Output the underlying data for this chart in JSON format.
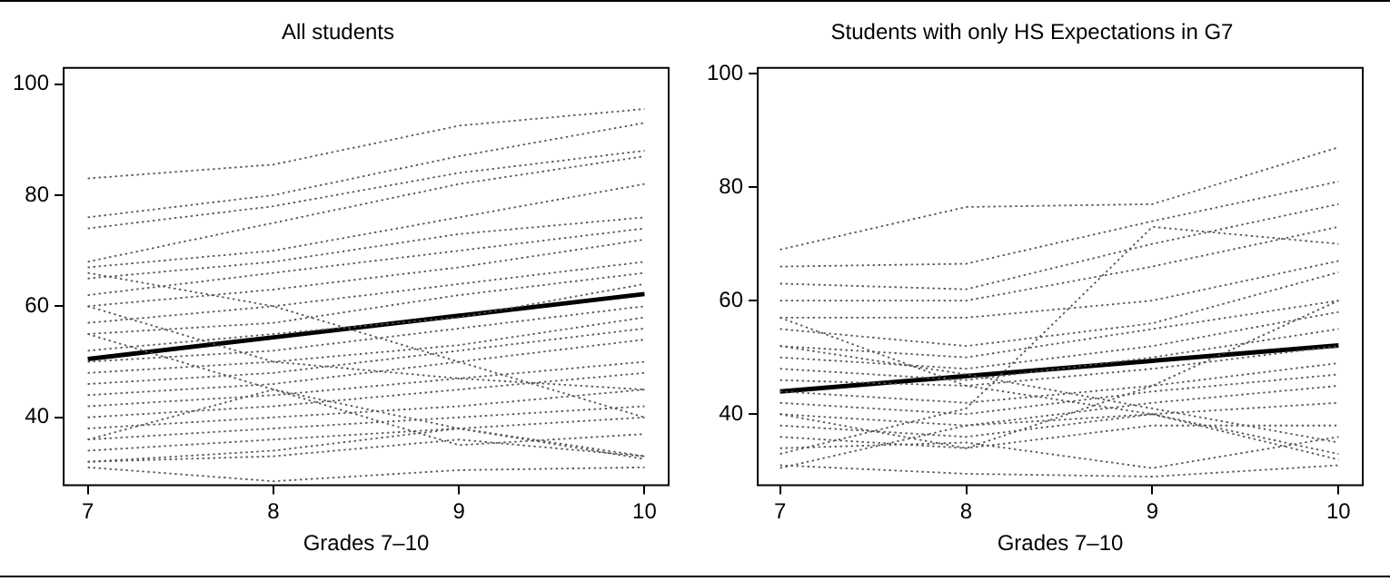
{
  "chart_data": [
    {
      "type": "line",
      "title": "All students",
      "xlabel": "Grades 7–10",
      "x": [
        7,
        8,
        9,
        10
      ],
      "xlim": [
        6.87,
        10.13
      ],
      "xticks": [
        7,
        8,
        9,
        10
      ],
      "ylim": [
        27.8,
        102.9
      ],
      "yticks": [
        40,
        60,
        80,
        100
      ],
      "grid": false,
      "legend": false,
      "marker": "none",
      "series": [
        {
          "color": "#555555",
          "line_style": "dotted",
          "values": [
            83,
            85.5,
            92.5,
            95.5
          ]
        },
        {
          "color": "#555555",
          "line_style": "dotted",
          "values": [
            76,
            80,
            87,
            93
          ]
        },
        {
          "color": "#555555",
          "line_style": "dotted",
          "values": [
            74,
            78,
            84,
            88
          ]
        },
        {
          "color": "#555555",
          "line_style": "dotted",
          "values": [
            68,
            75,
            82,
            87
          ]
        },
        {
          "color": "#555555",
          "line_style": "dotted",
          "values": [
            67,
            70,
            76,
            82
          ]
        },
        {
          "color": "#555555",
          "line_style": "dotted",
          "values": [
            65,
            68,
            73,
            76
          ]
        },
        {
          "color": "#555555",
          "line_style": "dotted",
          "values": [
            62,
            66,
            70,
            74
          ]
        },
        {
          "color": "#555555",
          "line_style": "dotted",
          "values": [
            60,
            63,
            67,
            72
          ]
        },
        {
          "color": "#555555",
          "line_style": "dotted",
          "values": [
            57,
            60,
            64,
            68
          ]
        },
        {
          "color": "#555555",
          "line_style": "dotted",
          "values": [
            55,
            57,
            62,
            66
          ]
        },
        {
          "color": "#555555",
          "line_style": "dotted",
          "values": [
            52,
            55,
            58,
            64
          ]
        },
        {
          "color": "#555555",
          "line_style": "dotted",
          "values": [
            50,
            52,
            56,
            60
          ]
        },
        {
          "color": "#555555",
          "line_style": "dotted",
          "values": [
            48,
            50,
            53,
            58
          ]
        },
        {
          "color": "#555555",
          "line_style": "dotted",
          "values": [
            46,
            48,
            52,
            56
          ]
        },
        {
          "color": "#555555",
          "line_style": "dotted",
          "values": [
            44,
            46,
            50,
            54
          ]
        },
        {
          "color": "#555555",
          "line_style": "dotted",
          "values": [
            42,
            44,
            47,
            50
          ]
        },
        {
          "color": "#555555",
          "line_style": "dotted",
          "values": [
            40,
            42,
            45,
            48
          ]
        },
        {
          "color": "#555555",
          "line_style": "dotted",
          "values": [
            38,
            40,
            42,
            45
          ]
        },
        {
          "color": "#555555",
          "line_style": "dotted",
          "values": [
            36,
            38,
            40,
            42
          ]
        },
        {
          "color": "#555555",
          "line_style": "dotted",
          "values": [
            34,
            36,
            38,
            40
          ]
        },
        {
          "color": "#555555",
          "line_style": "dotted",
          "values": [
            32,
            34,
            38,
            32.5
          ]
        },
        {
          "color": "#555555",
          "line_style": "dotted",
          "values": [
            31,
            28.5,
            30.5,
            31
          ]
        },
        {
          "color": "#555555",
          "line_style": "dotted",
          "values": [
            32,
            33,
            36,
            33
          ]
        },
        {
          "color": "#555555",
          "line_style": "dotted",
          "values": [
            36,
            45,
            35,
            37
          ]
        },
        {
          "color": "#555555",
          "line_style": "dotted",
          "values": [
            66,
            60,
            50,
            40
          ]
        },
        {
          "color": "#555555",
          "line_style": "dotted",
          "values": [
            55,
            45,
            38,
            33
          ]
        },
        {
          "color": "#555555",
          "line_style": "dotted",
          "values": [
            60,
            50,
            47,
            45
          ]
        },
        {
          "color": "#000000",
          "line_style": "solid",
          "values": [
            50.5,
            54.4,
            58.3,
            62.2
          ]
        }
      ]
    },
    {
      "type": "line",
      "title": "Students with only HS Expectations in G7",
      "xlabel": "Grades 7–10",
      "x": [
        7,
        8,
        9,
        10
      ],
      "xlim": [
        6.88,
        10.13
      ],
      "xticks": [
        7,
        8,
        9,
        10
      ],
      "ylim": [
        27.5,
        101
      ],
      "yticks": [
        40,
        60,
        80,
        100
      ],
      "grid": false,
      "legend": false,
      "marker": "none",
      "series": [
        {
          "color": "#555555",
          "line_style": "dotted",
          "values": [
            69,
            76.5,
            77,
            87
          ]
        },
        {
          "color": "#555555",
          "line_style": "dotted",
          "values": [
            66,
            66.5,
            74,
            81
          ]
        },
        {
          "color": "#555555",
          "line_style": "dotted",
          "values": [
            63,
            62,
            70,
            77
          ]
        },
        {
          "color": "#555555",
          "line_style": "dotted",
          "values": [
            60,
            60,
            66,
            73
          ]
        },
        {
          "color": "#555555",
          "line_style": "dotted",
          "values": [
            57,
            57,
            60,
            67
          ]
        },
        {
          "color": "#555555",
          "line_style": "dotted",
          "values": [
            55,
            52,
            56,
            65
          ]
        },
        {
          "color": "#555555",
          "line_style": "dotted",
          "values": [
            52,
            50,
            55,
            60
          ]
        },
        {
          "color": "#555555",
          "line_style": "dotted",
          "values": [
            50,
            48,
            52,
            58
          ]
        },
        {
          "color": "#555555",
          "line_style": "dotted",
          "values": [
            48,
            46,
            50,
            55
          ]
        },
        {
          "color": "#555555",
          "line_style": "dotted",
          "values": [
            46,
            45,
            48,
            52
          ]
        },
        {
          "color": "#555555",
          "line_style": "dotted",
          "values": [
            44,
            42,
            45,
            49
          ]
        },
        {
          "color": "#555555",
          "line_style": "dotted",
          "values": [
            42,
            40,
            44,
            47
          ]
        },
        {
          "color": "#555555",
          "line_style": "dotted",
          "values": [
            40,
            38,
            42,
            45
          ]
        },
        {
          "color": "#555555",
          "line_style": "dotted",
          "values": [
            38,
            36,
            40,
            42
          ]
        },
        {
          "color": "#555555",
          "line_style": "dotted",
          "values": [
            36,
            34,
            38,
            38
          ]
        },
        {
          "color": "#555555",
          "line_style": "dotted",
          "values": [
            34,
            35,
            30.5,
            36
          ]
        },
        {
          "color": "#555555",
          "line_style": "dotted",
          "values": [
            31,
            29.5,
            29,
            31
          ]
        },
        {
          "color": "#555555",
          "line_style": "dotted",
          "values": [
            30.5,
            38,
            40,
            33
          ]
        },
        {
          "color": "#555555",
          "line_style": "dotted",
          "values": [
            57,
            45,
            40,
            32
          ]
        },
        {
          "color": "#555555",
          "line_style": "dotted",
          "values": [
            52,
            47,
            41,
            35
          ]
        },
        {
          "color": "#555555",
          "line_style": "dotted",
          "values": [
            33,
            41,
            73,
            70
          ]
        },
        {
          "color": "#555555",
          "line_style": "dotted",
          "values": [
            40,
            34,
            45,
            60
          ]
        },
        {
          "color": "#000000",
          "line_style": "solid",
          "values": [
            44,
            46.7,
            49.4,
            52.1
          ]
        }
      ]
    }
  ]
}
